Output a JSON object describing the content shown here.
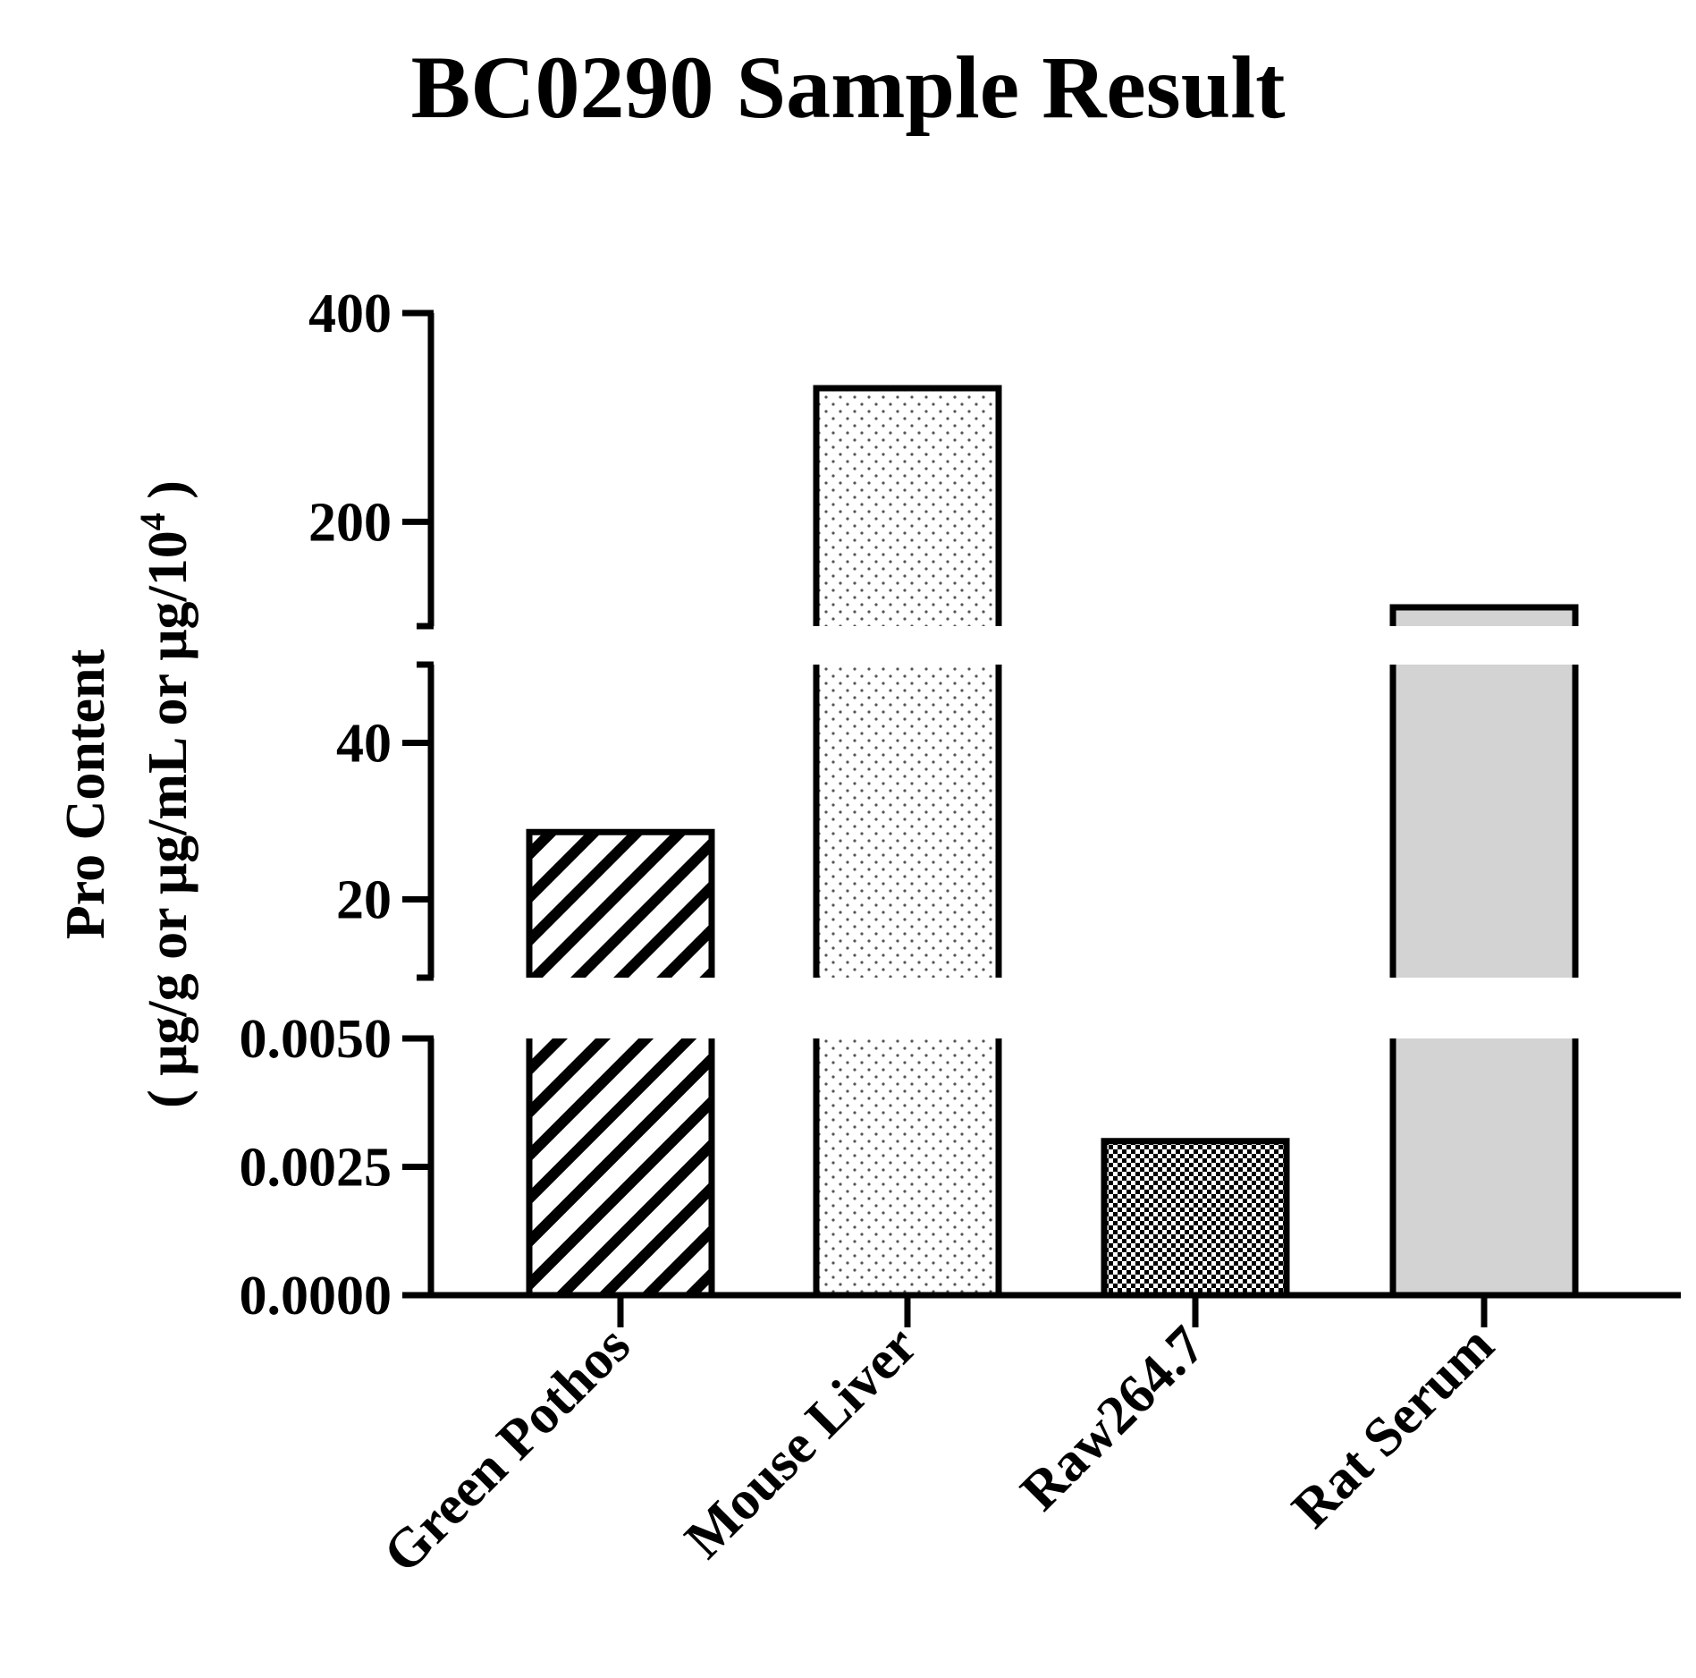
{
  "chart_data": {
    "type": "bar",
    "title": "BC0290 Sample Result",
    "ylabel_line1": "Pro Content",
    "ylabel_line2_prefix": "( μg/g or μg/mL or μg/10",
    "ylabel_line2_sup": "4",
    "ylabel_line2_suffix": " )",
    "xlabel": "",
    "categories": [
      "Green Pothos",
      "Mouse Liver",
      "Raw264.7",
      "Rat Serum"
    ],
    "values": [
      28.6,
      328,
      0.003,
      118
    ],
    "bar_patterns": [
      "diagonal-stripes",
      "fine-dots",
      "checkerboard",
      "solid-light-gray"
    ],
    "bar_fill_colors": [
      "#ffffff",
      "#ffffff",
      "#ffffff",
      "#d3d3d3"
    ],
    "grid": false,
    "legend": "none",
    "broken_axis": true,
    "segments": [
      {
        "ylim": [
          0,
          0.005
        ],
        "ticks": [
          0,
          0.0025,
          0.005
        ],
        "tick_labels": [
          "0.0000",
          "0.0025",
          "0.0050"
        ]
      },
      {
        "ylim": [
          10,
          50
        ],
        "ticks": [
          20,
          40
        ],
        "tick_labels": [
          "20",
          "40"
        ]
      },
      {
        "ylim": [
          100,
          400
        ],
        "ticks": [
          200,
          400
        ],
        "tick_labels": [
          "200",
          "400"
        ]
      }
    ]
  }
}
